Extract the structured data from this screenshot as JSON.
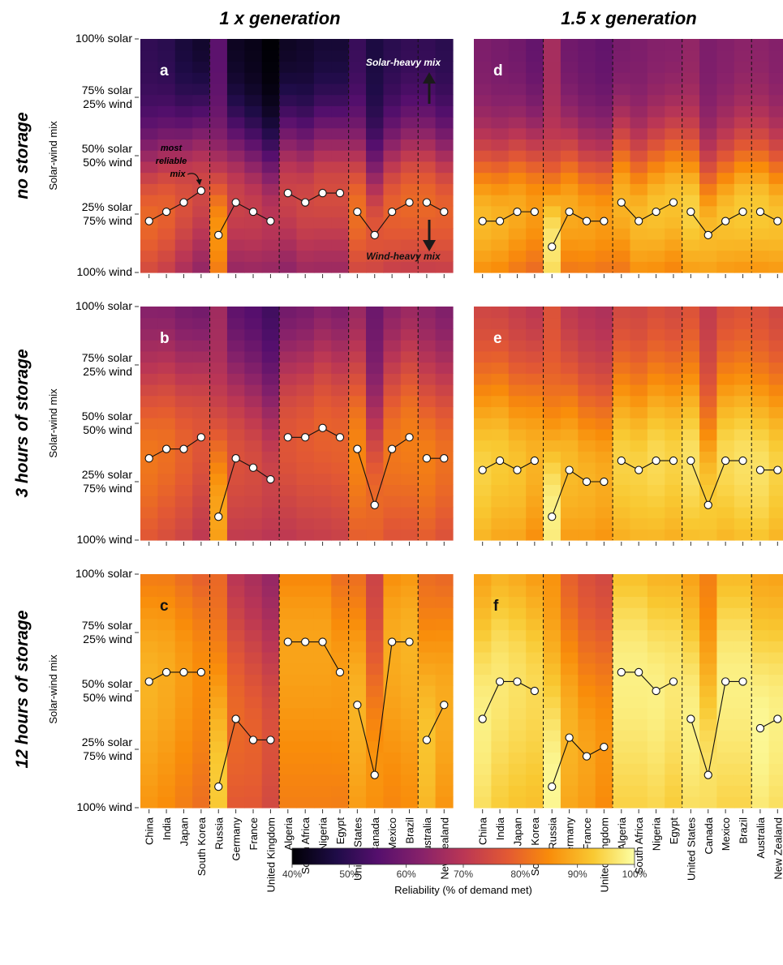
{
  "figure": {
    "column_titles": [
      "1 x generation",
      "1.5 x generation"
    ],
    "row_titles": [
      "no storage",
      "3 hours of storage",
      "12 hours of storage"
    ],
    "y_axis_title": "Solar-wind mix",
    "y_tick_labels": [
      {
        "mix": 100,
        "lines": [
          "100% solar"
        ]
      },
      {
        "mix": 75,
        "lines": [
          "75% solar",
          "25% wind"
        ]
      },
      {
        "mix": 50,
        "lines": [
          "50% solar",
          "50% wind"
        ]
      },
      {
        "mix": 25,
        "lines": [
          "25% solar",
          "75% wind"
        ]
      },
      {
        "mix": 0,
        "lines": [
          "100% wind"
        ]
      }
    ],
    "annotations": {
      "most_reliable_mix": [
        "most",
        "reliable",
        "mix"
      ],
      "solar_heavy": "Solar-heavy mix",
      "wind_heavy": "Wind-heavy mix"
    },
    "colorbar": {
      "label": "Reliability (% of demand met)",
      "ticks": [
        "40%",
        "50%",
        "60%",
        "70%",
        "80%",
        "90%",
        "100%"
      ],
      "min": 40,
      "max": 100,
      "colormap": "inferno"
    }
  },
  "chart_data": {
    "type": "heatmap",
    "countries": [
      "China",
      "India",
      "Japan",
      "South Korea",
      "Russia",
      "Germany",
      "France",
      "United Kingdom",
      "Algeria",
      "South Africa",
      "Nigeria",
      "Egypt",
      "United States",
      "Canada",
      "Mexico",
      "Brazil",
      "Australia",
      "New Zealand"
    ],
    "group_boundaries_after_index": [
      3,
      7,
      11,
      15
    ],
    "y_axis": {
      "quantity": "solar share (%)",
      "range": [
        0,
        100
      ]
    },
    "value_range": [
      40,
      100
    ],
    "panels": [
      {
        "label": "a",
        "generation": "1 x generation",
        "storage": "no storage",
        "optimal_mix": [
          22,
          26,
          30,
          35,
          16,
          30,
          26,
          22,
          34,
          30,
          34,
          34,
          26,
          16,
          26,
          30,
          30,
          26
        ],
        "peak": [
          80,
          79,
          76,
          74,
          86,
          73,
          72,
          70,
          73,
          74,
          75,
          75,
          81,
          77,
          79,
          80,
          80,
          79
        ],
        "level": 0
      },
      {
        "label": "b",
        "generation": "1 x generation",
        "storage": "3 hours of storage",
        "optimal_mix": [
          35,
          39,
          39,
          44,
          10,
          35,
          31,
          26,
          44,
          44,
          48,
          44,
          39,
          15,
          39,
          44,
          35,
          35
        ],
        "peak": [
          82,
          81,
          79,
          77,
          88,
          76,
          75,
          73,
          77,
          78,
          79,
          79,
          84,
          80,
          82,
          83,
          83,
          81
        ],
        "level": 3
      },
      {
        "label": "c",
        "generation": "1 x generation",
        "storage": "12 hours of storage",
        "optimal_mix": [
          54,
          58,
          58,
          58,
          9,
          38,
          29,
          29,
          71,
          71,
          71,
          58,
          44,
          14,
          71,
          71,
          29,
          44
        ],
        "peak": [
          90,
          89,
          87,
          85,
          93,
          80,
          79,
          76,
          88,
          88,
          88,
          87,
          90,
          86,
          89,
          90,
          92,
          89
        ],
        "level": 12
      },
      {
        "label": "d",
        "generation": "1.5 x generation",
        "storage": "no storage",
        "optimal_mix": [
          22,
          22,
          26,
          26,
          11,
          26,
          22,
          22,
          30,
          22,
          26,
          30,
          26,
          16,
          22,
          26,
          26,
          22
        ],
        "peak": [
          91,
          90,
          89,
          87,
          97,
          89,
          88,
          87,
          90,
          91,
          92,
          92,
          94,
          91,
          92,
          93,
          93,
          92
        ],
        "level": 0
      },
      {
        "label": "e",
        "generation": "1.5 x generation",
        "storage": "3 hours of storage",
        "optimal_mix": [
          30,
          34,
          30,
          34,
          10,
          30,
          25,
          25,
          34,
          30,
          34,
          34,
          34,
          15,
          34,
          34,
          30,
          30
        ],
        "peak": [
          94,
          93,
          92,
          90,
          98,
          91,
          90,
          89,
          94,
          94,
          95,
          94,
          96,
          93,
          95,
          96,
          96,
          94
        ],
        "level": 3
      },
      {
        "label": "f",
        "generation": "1.5 x generation",
        "storage": "12 hours of storage",
        "optimal_mix": [
          38,
          54,
          54,
          50,
          9,
          30,
          22,
          26,
          58,
          58,
          50,
          54,
          38,
          14,
          54,
          54,
          34,
          38
        ],
        "peak": [
          98,
          97,
          96,
          95,
          99,
          90,
          88,
          86,
          98,
          98,
          98,
          97,
          98,
          96,
          98,
          98,
          99,
          98
        ],
        "level": 12
      }
    ]
  }
}
